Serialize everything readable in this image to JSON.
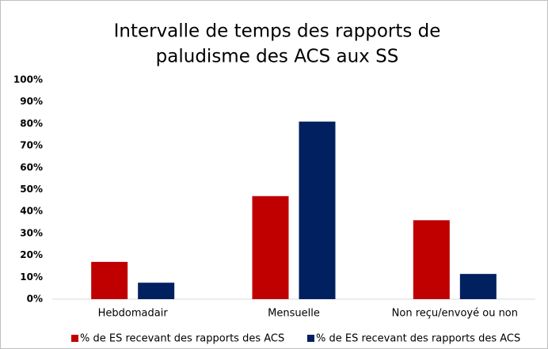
{
  "chart_data": {
    "type": "bar",
    "title": [
      "Intervalle de temps des rapports de",
      "paludisme des ACS aux SS"
    ],
    "categories": [
      "Hebdomadair",
      "Mensuelle",
      "Non reçu/envoyé ou non"
    ],
    "series": [
      {
        "name": "% de ES recevant des rapports des ACS",
        "color": "#c00000",
        "values": [
          17,
          47,
          36
        ]
      },
      {
        "name": "% de ES recevant des rapports des ACS",
        "color": "#002060",
        "values": [
          7.5,
          81,
          11.5
        ]
      }
    ],
    "ylim": [
      0,
      100
    ],
    "yticks": [
      {
        "value": 0,
        "label": "0%"
      },
      {
        "value": 10,
        "label": "10%"
      },
      {
        "value": 20,
        "label": "20%"
      },
      {
        "value": 30,
        "label": "30%"
      },
      {
        "value": 40,
        "label": "40%"
      },
      {
        "value": 50,
        "label": "50%"
      },
      {
        "value": 60,
        "label": "60%"
      },
      {
        "value": 70,
        "label": "70%"
      },
      {
        "value": 80,
        "label": "80%"
      },
      {
        "value": 90,
        "label": "90%"
      },
      {
        "value": 100,
        "label": "100%"
      }
    ],
    "grid": false,
    "legend": "bottom"
  }
}
